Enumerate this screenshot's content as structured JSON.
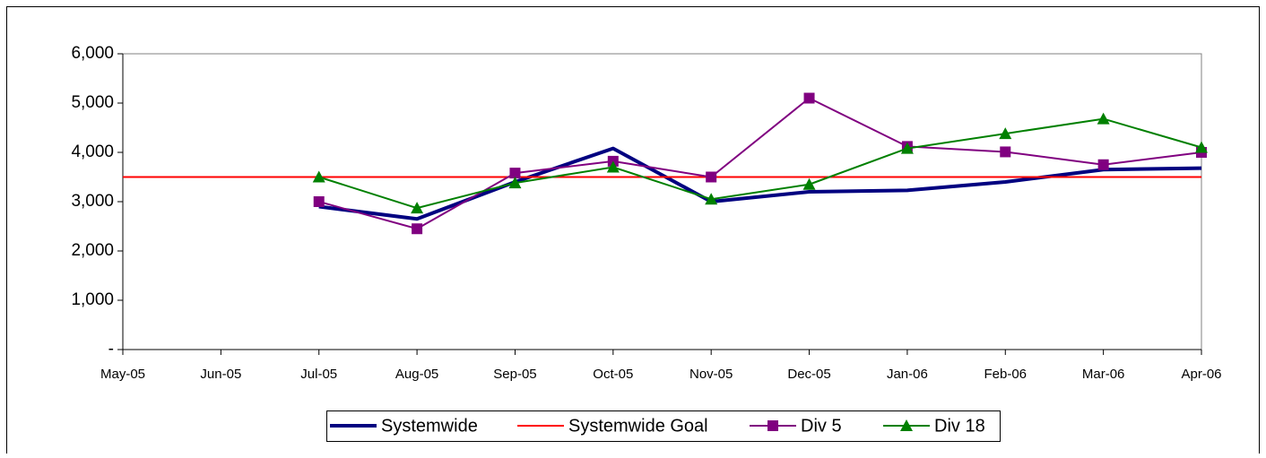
{
  "chart_data": {
    "type": "line",
    "categories": [
      "May-05",
      "Jun-05",
      "Jul-05",
      "Aug-05",
      "Sep-05",
      "Oct-05",
      "Nov-05",
      "Dec-05",
      "Jan-06",
      "Feb-06",
      "Mar-06",
      "Apr-06"
    ],
    "series": [
      {
        "name": "Systemwide",
        "color": "#000080",
        "line_width": 4,
        "marker": "none",
        "values": [
          null,
          null,
          2900,
          2650,
          3400,
          4080,
          3000,
          3200,
          3230,
          3400,
          3650,
          3680
        ]
      },
      {
        "name": "Systemwide Goal",
        "color": "#ff0000",
        "line_width": 2,
        "marker": "none",
        "values": [
          3500,
          3500,
          3500,
          3500,
          3500,
          3500,
          3500,
          3500,
          3500,
          3500,
          3500,
          3500
        ]
      },
      {
        "name": "Div 5",
        "color": "#800080",
        "line_width": 2,
        "marker": "square",
        "values": [
          null,
          null,
          3000,
          2450,
          3580,
          3820,
          3500,
          5100,
          4120,
          4010,
          3750,
          4000
        ]
      },
      {
        "name": "Div 18",
        "color": "#008000",
        "line_width": 2,
        "marker": "triangle",
        "values": [
          null,
          null,
          3500,
          2870,
          3380,
          3700,
          3050,
          3350,
          4080,
          4380,
          4680,
          4100
        ]
      }
    ],
    "ylim": [
      0,
      6000
    ],
    "yticks": [
      {
        "value": 0,
        "label": "-"
      },
      {
        "value": 1000,
        "label": "1,000"
      },
      {
        "value": 2000,
        "label": "2,000"
      },
      {
        "value": 3000,
        "label": "3,000"
      },
      {
        "value": 4000,
        "label": "4,000"
      },
      {
        "value": 5000,
        "label": "5,000"
      },
      {
        "value": 6000,
        "label": "6,000"
      }
    ],
    "grid": false,
    "legend": "bottom"
  }
}
